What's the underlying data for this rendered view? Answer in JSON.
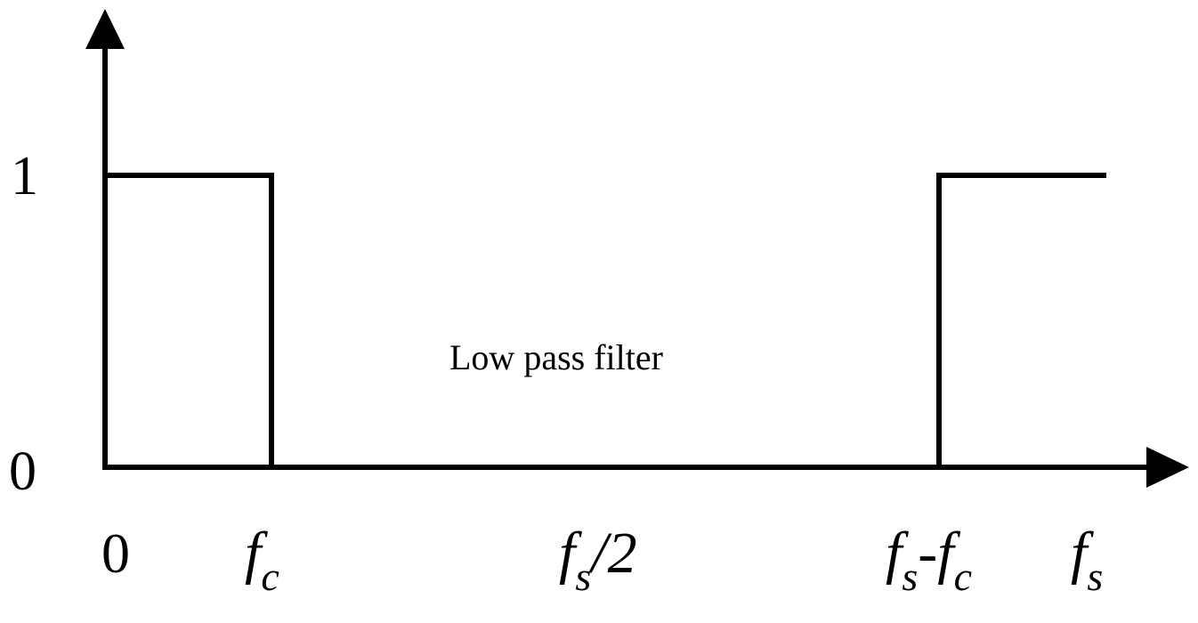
{
  "diagram": {
    "title": "Low pass filter",
    "y_ticks": [
      "1",
      "0"
    ],
    "x_ticks": [
      {
        "main": "0",
        "sub": "",
        "suffix": ""
      },
      {
        "main": "f",
        "sub": "c",
        "suffix": ""
      },
      {
        "main": "f",
        "sub": "s",
        "suffix": "/2"
      },
      {
        "main": "f",
        "sub": "s",
        "suffix": "-f",
        "sub2": "c"
      },
      {
        "main": "f",
        "sub": "s",
        "suffix": ""
      }
    ]
  }
}
